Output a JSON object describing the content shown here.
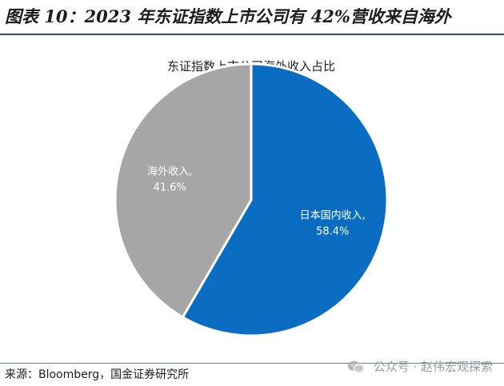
{
  "figure": {
    "title": "图表 10：2023 年东证指数上市公司有 42%营收来自海外",
    "source": "来源：Bloomberg，国金证券研究所",
    "watermark": "公众号 · 赵伟宏观探索"
  },
  "chart_data": {
    "type": "pie",
    "title": "东证指数上市公司海外收入占比",
    "slices": [
      {
        "label": "日本国内收入,",
        "value": 58.4,
        "value_label": "58.4%",
        "color": "#0a6dc2"
      },
      {
        "label": "海外收入,",
        "value": 41.6,
        "value_label": "41.6%",
        "color": "#a6a6a6"
      }
    ],
    "start_angle_deg": 0,
    "direction": "clockwise",
    "legend": "none",
    "label_color": "#ffffff",
    "slice_border_color": "#ffffff"
  }
}
